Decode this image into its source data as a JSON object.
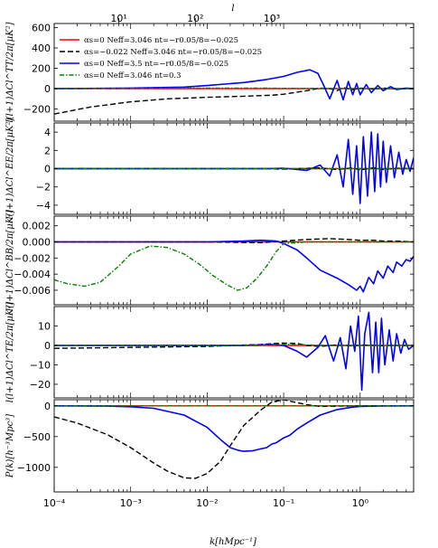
{
  "chart_data": {
    "type": "line",
    "x_axis": {
      "label": "k[hMpc⁻¹]",
      "scale": "log",
      "range": [
        0.0001,
        5
      ],
      "ticks": [
        "10⁻⁴",
        "10⁻³",
        "10⁻²",
        "10⁻¹",
        "10⁰"
      ],
      "tick_values": [
        0.0001,
        0.001,
        0.01,
        0.1,
        1
      ]
    },
    "top_axis": {
      "label": "l",
      "scale": "log",
      "ticks": [
        "10¹",
        "10²",
        "10³"
      ],
      "tick_k": [
        0.0007,
        0.007,
        0.07
      ]
    },
    "legend": {
      "placement": "top-left of first panel",
      "entries": [
        {
          "label": "αs=0 Neff=3.046 nt=−r0.05/8=−0.025",
          "color": "#ff0000",
          "style": "solid"
        },
        {
          "label": "αs=−0.022 Neff=3.046 nt=−r0.05/8=−0.025",
          "color": "#000000",
          "style": "dashed"
        },
        {
          "label": "αs=0 Neff=3.5 nt=−r0.05/8=−0.025",
          "color": "#0000ff",
          "style": "solid"
        },
        {
          "label": "αs=0 Neff=3.046 nt=0.3",
          "color": "#008000",
          "style": "dashdot"
        }
      ]
    },
    "panels": [
      {
        "id": "TT",
        "ylabel": "l(l+1)ΔCl^TT/2π[μK²]",
        "ylim": [
          -320,
          640
        ],
        "yticks": [
          -200,
          0,
          200,
          400,
          600
        ],
        "series": [
          {
            "color": "#ff0000",
            "style": "solid",
            "x": [
              0.0001,
              0.01,
              0.1,
              1,
              5
            ],
            "y": [
              0,
              0,
              0,
              0,
              0
            ]
          },
          {
            "color": "#000000",
            "style": "dashed",
            "x": [
              0.0001,
              0.0003,
              0.001,
              0.003,
              0.01,
              0.03,
              0.07,
              0.1,
              0.15,
              0.2,
              0.3,
              0.4,
              0.5,
              0.6,
              0.8,
              1,
              1.5,
              2,
              3,
              5
            ],
            "y": [
              -250,
              -180,
              -130,
              -100,
              -85,
              -75,
              -65,
              -55,
              -35,
              -20,
              5,
              0,
              -20,
              10,
              -10,
              5,
              -5,
              5,
              -3,
              0
            ]
          },
          {
            "color": "#0000ff",
            "style": "solid",
            "x": [
              0.0001,
              0.001,
              0.005,
              0.01,
              0.03,
              0.06,
              0.1,
              0.15,
              0.22,
              0.28,
              0.33,
              0.4,
              0.5,
              0.6,
              0.7,
              0.8,
              0.9,
              1,
              1.2,
              1.4,
              1.7,
              2,
              2.5,
              3,
              4,
              5
            ],
            "y": [
              0,
              5,
              15,
              30,
              60,
              90,
              120,
              160,
              185,
              150,
              40,
              -100,
              80,
              -110,
              70,
              -60,
              50,
              -60,
              40,
              -40,
              30,
              -20,
              20,
              -10,
              5,
              0
            ]
          },
          {
            "color": "#008000",
            "style": "dashdot",
            "x": [
              0.0001,
              0.001,
              0.01,
              0.05,
              0.1,
              0.2,
              0.4,
              1,
              5
            ],
            "y": [
              0,
              3,
              5,
              5,
              3,
              2,
              1,
              0,
              0
            ]
          }
        ]
      },
      {
        "id": "EE",
        "ylabel": "l(l+1)ΔCl^EE/2π[μK²]",
        "ylim": [
          -5,
          5
        ],
        "yticks": [
          -4,
          -2,
          0,
          2,
          4
        ],
        "series": [
          {
            "color": "#ff0000",
            "style": "solid",
            "x": [
              0.0001,
              0.1,
              1,
              5
            ],
            "y": [
              0,
              0,
              0,
              0
            ]
          },
          {
            "color": "#000000",
            "style": "dashed",
            "x": [
              0.0001,
              0.05,
              0.1,
              0.3,
              0.5,
              0.8,
              1,
              1.5,
              2,
              3,
              5
            ],
            "y": [
              0,
              0,
              -0.05,
              0.08,
              -0.1,
              0.1,
              -0.15,
              0.1,
              -0.1,
              0.05,
              0
            ]
          },
          {
            "color": "#0000ff",
            "style": "solid",
            "x": [
              0.0001,
              0.05,
              0.1,
              0.2,
              0.3,
              0.4,
              0.5,
              0.6,
              0.7,
              0.8,
              0.9,
              1,
              1.1,
              1.25,
              1.4,
              1.55,
              1.7,
              1.85,
              2,
              2.2,
              2.5,
              2.8,
              3.2,
              3.6,
              4,
              4.5,
              5
            ],
            "y": [
              0,
              0,
              0.05,
              -0.2,
              0.4,
              -0.8,
              1.5,
              -2,
              3.2,
              -2.8,
              2.5,
              -3.8,
              3.5,
              -3,
              4,
              -2.5,
              3.8,
              -2,
              3,
              -1.5,
              2.5,
              -1,
              1.8,
              -0.6,
              1,
              -0.3,
              1.2
            ]
          },
          {
            "color": "#008000",
            "style": "dashdot",
            "x": [
              0.0001,
              5
            ],
            "y": [
              0,
              0
            ]
          }
        ]
      },
      {
        "id": "BB",
        "ylabel": "l(l+1)ΔCl^BB/2π[μK²]",
        "ylim": [
          -0.0078,
          0.0032
        ],
        "yticks": [
          -0.006,
          -0.004,
          -0.002,
          0.0,
          0.002
        ],
        "series": [
          {
            "color": "#ff0000",
            "style": "solid",
            "x": [
              0.0001,
              0.1,
              1,
              5
            ],
            "y": [
              0,
              0,
              0,
              0
            ]
          },
          {
            "color": "#000000",
            "style": "dashed",
            "x": [
              0.0001,
              0.01,
              0.05,
              0.1,
              0.2,
              0.4,
              0.7,
              1,
              1.5,
              2,
              3,
              5
            ],
            "y": [
              0,
              0,
              -0.0001,
              0.0001,
              0.0003,
              0.0004,
              0.0003,
              0.0002,
              0.0002,
              0.0001,
              0.0001,
              0
            ]
          },
          {
            "color": "#0000ff",
            "style": "solid",
            "x": [
              0.0001,
              0.01,
              0.03,
              0.05,
              0.08,
              0.1,
              0.15,
              0.2,
              0.3,
              0.5,
              0.7,
              0.9,
              1,
              1.1,
              1.3,
              1.5,
              1.7,
              2,
              2.3,
              2.7,
              3,
              3.5,
              4,
              4.5,
              5
            ],
            "y": [
              0,
              0,
              0.0001,
              0.0002,
              0.0001,
              -0.0002,
              -0.001,
              -0.002,
              -0.0035,
              -0.0045,
              -0.0053,
              -0.006,
              -0.0055,
              -0.0062,
              -0.0044,
              -0.0052,
              -0.0036,
              -0.0045,
              -0.003,
              -0.0038,
              -0.0025,
              -0.003,
              -0.0022,
              -0.0024,
              -0.0018
            ]
          },
          {
            "color": "#008000",
            "style": "dashdot",
            "x": [
              0.0001,
              0.00015,
              0.00025,
              0.0004,
              0.0007,
              0.001,
              0.0018,
              0.003,
              0.005,
              0.008,
              0.012,
              0.018,
              0.025,
              0.033,
              0.045,
              0.06,
              0.08,
              0.1,
              0.15,
              0.2,
              0.3,
              0.5,
              1,
              5
            ],
            "y": [
              -0.0047,
              -0.0052,
              -0.0055,
              -0.005,
              -0.003,
              -0.0015,
              -0.0005,
              -0.0007,
              -0.0015,
              -0.0028,
              -0.0042,
              -0.0053,
              -0.006,
              -0.0057,
              -0.0045,
              -0.003,
              -0.0012,
              -0.0002,
              -0.0001,
              0,
              0,
              0,
              0,
              0
            ]
          }
        ]
      },
      {
        "id": "TE",
        "ylabel": "l(l+1)ΔCl^TE/2π[μK²]",
        "ylim": [
          -27,
          20
        ],
        "yticks": [
          -20,
          -10,
          0,
          10
        ],
        "series": [
          {
            "color": "#ff0000",
            "style": "solid",
            "x": [
              0.0001,
              0.1,
              1,
              5
            ],
            "y": [
              0,
              0,
              0,
              0
            ]
          },
          {
            "color": "#000000",
            "style": "dashed",
            "x": [
              0.0001,
              0.01,
              0.05,
              0.08,
              0.1,
              0.15,
              0.2,
              0.3,
              0.5,
              0.8,
              1,
              2,
              5
            ],
            "y": [
              -1.5,
              -0.5,
              0.5,
              1,
              1.2,
              1,
              0,
              -0.5,
              0.3,
              -0.3,
              0.2,
              -0.1,
              0
            ]
          },
          {
            "color": "#0000ff",
            "style": "solid",
            "x": [
              0.0001,
              0.03,
              0.07,
              0.1,
              0.15,
              0.2,
              0.28,
              0.35,
              0.45,
              0.55,
              0.65,
              0.75,
              0.85,
              0.95,
              1.05,
              1.15,
              1.3,
              1.45,
              1.6,
              1.75,
              1.9,
              2.1,
              2.4,
              2.7,
              3,
              3.4,
              3.8,
              4.3,
              5
            ],
            "y": [
              0,
              0,
              0.5,
              0,
              -3,
              -6,
              -1,
              5,
              -8,
              4,
              -12,
              10,
              -3,
              15,
              -23,
              6,
              17,
              -14,
              12,
              -14,
              14,
              -10,
              8,
              -8,
              6,
              -4,
              3,
              -2,
              0
            ]
          },
          {
            "color": "#008000",
            "style": "dashdot",
            "x": [
              0.0001,
              0.05,
              0.1,
              0.2,
              0.3,
              5
            ],
            "y": [
              0,
              0,
              0.5,
              0.3,
              0,
              0
            ]
          }
        ]
      },
      {
        "id": "Pk",
        "ylabel": "P(k)[h⁻³Mpc³]",
        "ylim": [
          -1400,
          100
        ],
        "yticks": [
          -1000,
          -500,
          0
        ],
        "series": [
          {
            "color": "#ff0000",
            "style": "solid",
            "x": [
              0.0001,
              0.1,
              1,
              5
            ],
            "y": [
              0,
              0,
              0,
              0
            ]
          },
          {
            "color": "#000000",
            "style": "dashed",
            "x": [
              0.0001,
              0.0002,
              0.0005,
              0.001,
              0.002,
              0.003,
              0.005,
              0.007,
              0.01,
              0.015,
              0.02,
              0.03,
              0.05,
              0.07,
              0.1,
              0.15,
              0.2,
              0.3,
              0.5,
              1,
              2,
              5
            ],
            "y": [
              -180,
              -280,
              -470,
              -680,
              -930,
              -1060,
              -1170,
              -1180,
              -1100,
              -900,
              -650,
              -320,
              -70,
              60,
              100,
              50,
              20,
              -10,
              -5,
              -2,
              0,
              0
            ]
          },
          {
            "color": "#0000ff",
            "style": "solid",
            "x": [
              0.0001,
              0.0005,
              0.001,
              0.002,
              0.005,
              0.01,
              0.015,
              0.02,
              0.025,
              0.03,
              0.04,
              0.05,
              0.06,
              0.07,
              0.08,
              0.1,
              0.12,
              0.15,
              0.2,
              0.3,
              0.5,
              0.8,
              1,
              2,
              5
            ],
            "y": [
              0,
              -5,
              -15,
              -40,
              -150,
              -350,
              -550,
              -680,
              -720,
              -740,
              -730,
              -700,
              -680,
              -620,
              -600,
              -520,
              -480,
              -380,
              -280,
              -150,
              -60,
              -20,
              -10,
              -3,
              0
            ]
          },
          {
            "color": "#008000",
            "style": "dashdot",
            "x": [
              0.0001,
              5
            ],
            "y": [
              0,
              0
            ]
          }
        ]
      }
    ]
  }
}
